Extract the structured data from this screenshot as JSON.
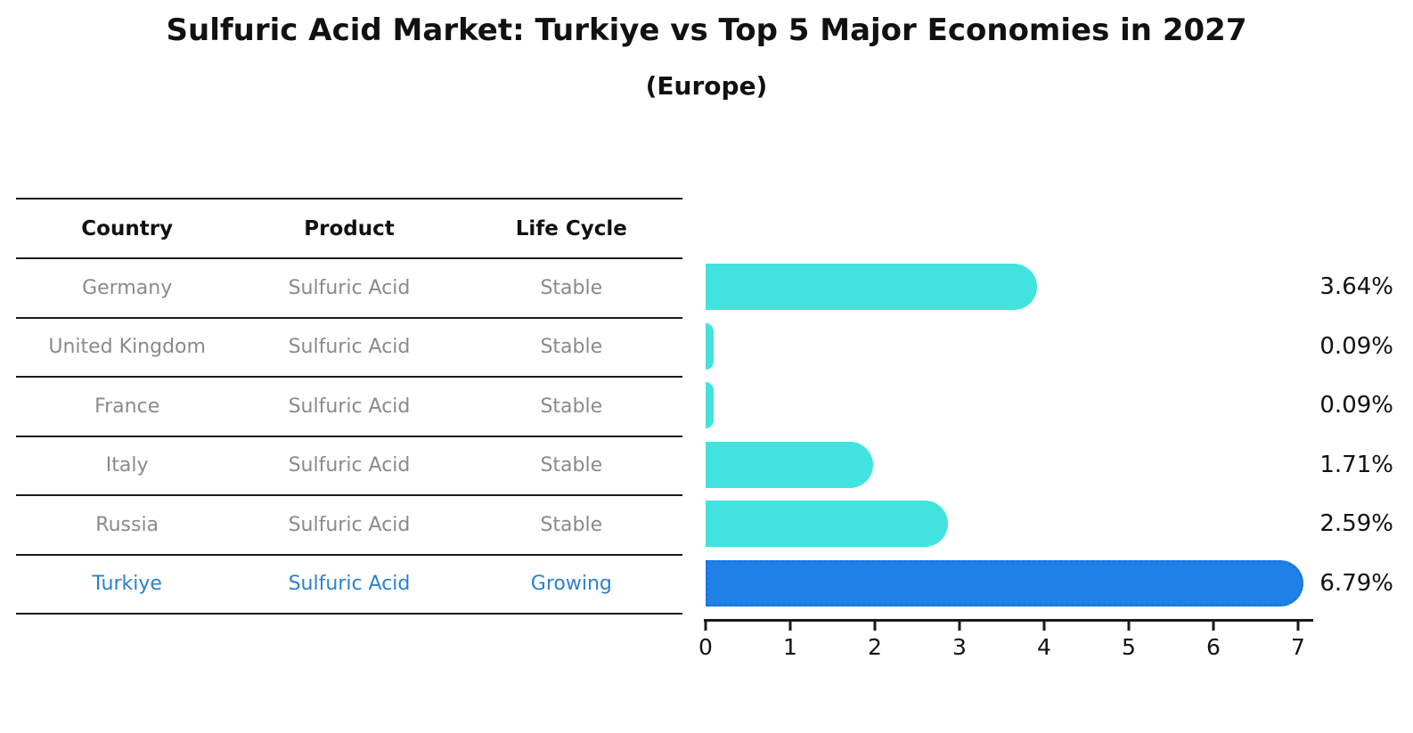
{
  "title": "Sulfuric Acid Market: Turkiye vs Top 5 Major Economies in 2027",
  "subtitle": "(Europe)",
  "table": {
    "headers": [
      "Country",
      "Product",
      "Life Cycle"
    ],
    "rows": [
      {
        "country": "Germany",
        "product": "Sulfuric Acid",
        "life_cycle": "Stable",
        "highlight": false
      },
      {
        "country": "United Kingdom",
        "product": "Sulfuric Acid",
        "life_cycle": "Stable",
        "highlight": false
      },
      {
        "country": "France",
        "product": "Sulfuric Acid",
        "life_cycle": "Stable",
        "highlight": false
      },
      {
        "country": "Italy",
        "product": "Sulfuric Acid",
        "life_cycle": "Stable",
        "highlight": false
      },
      {
        "country": "Russia",
        "product": "Sulfuric Acid",
        "life_cycle": "Stable",
        "highlight": false
      },
      {
        "country": "Turkiye",
        "product": "Sulfuric Acid",
        "life_cycle": "Growing",
        "highlight": true
      }
    ]
  },
  "chart_data": {
    "type": "bar",
    "orientation": "horizontal",
    "title": "Sulfuric Acid Market: Turkiye vs Top 5 Major Economies in 2027",
    "subtitle": "(Europe)",
    "categories": [
      "Germany",
      "United Kingdom",
      "France",
      "Italy",
      "Russia",
      "Turkiye"
    ],
    "values": [
      3.64,
      0.09,
      0.09,
      1.71,
      2.59,
      6.79
    ],
    "value_labels": [
      "3.64%",
      "0.09%",
      "0.09%",
      "1.71%",
      "2.59%",
      "6.79%"
    ],
    "unit": "%",
    "xlim": [
      0,
      7
    ],
    "x_ticks": [
      "0",
      "1",
      "2",
      "3",
      "4",
      "5",
      "6",
      "7"
    ],
    "grid": "off",
    "legend": "none",
    "highlight_index": 5,
    "colors": {
      "bar": "#42E3DE",
      "highlight_bar": "#1F80E8",
      "highlight_text": "#2B7FD2",
      "text": "#111111",
      "muted_text": "#8A8A8A"
    }
  }
}
